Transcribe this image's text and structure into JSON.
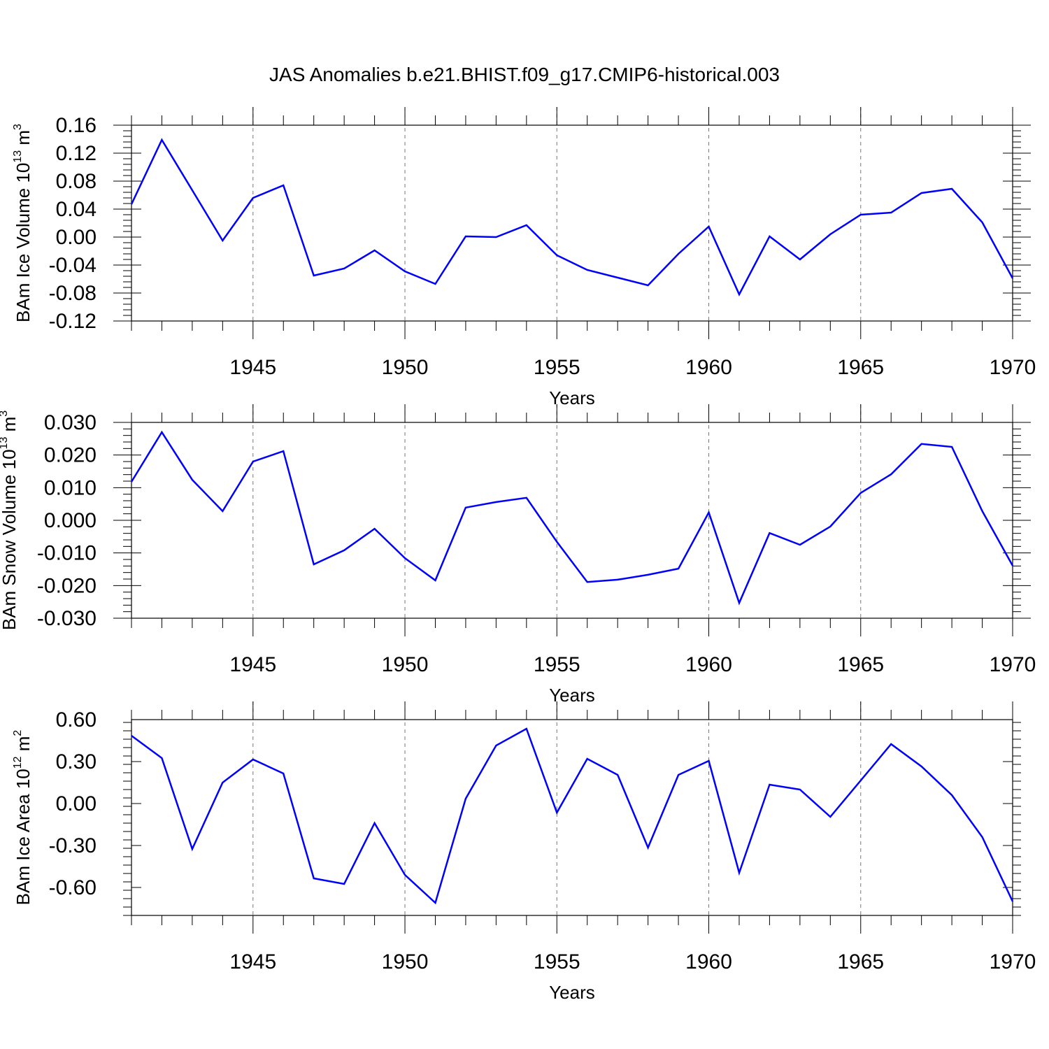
{
  "chart_data": {
    "title": "JAS Anomalies b.e21.BHIST.f09_g17.CMIP6-historical.003",
    "panels": [
      {
        "type": "line",
        "ylabel": {
          "base": "BAm Ice Volume 10",
          "exp1": "13",
          "unit": " m",
          "exp2": "3"
        },
        "xlabel": "Years",
        "xlim": [
          1941,
          1970
        ],
        "ylim": [
          -0.12,
          0.16
        ],
        "yticks": [
          "0.16",
          "0.12",
          "0.08",
          "0.04",
          "0.00",
          "-0.04",
          "-0.08",
          "-0.12"
        ],
        "ytick_values": [
          0.16,
          0.12,
          0.08,
          0.04,
          0.0,
          -0.04,
          -0.08,
          -0.12
        ],
        "xticks": [
          "1945",
          "1950",
          "1955",
          "1960",
          "1965",
          "1970"
        ],
        "x": [
          1941,
          1942,
          1943,
          1944,
          1945,
          1946,
          1947,
          1948,
          1949,
          1950,
          1951,
          1952,
          1953,
          1954,
          1955,
          1956,
          1957,
          1958,
          1959,
          1960,
          1961,
          1962,
          1963,
          1964,
          1965,
          1966,
          1967,
          1968,
          1969,
          1970
        ],
        "values": [
          0.047,
          0.139,
          0.067,
          -0.005,
          0.056,
          0.074,
          -0.055,
          -0.045,
          -0.019,
          -0.049,
          -0.067,
          0.001,
          0.0,
          0.017,
          -0.026,
          -0.047,
          -0.058,
          -0.069,
          -0.024,
          0.015,
          -0.082,
          0.001,
          -0.032,
          0.004,
          0.032,
          0.035,
          0.063,
          0.069,
          0.021,
          -0.059
        ],
        "color": "#0000ff"
      },
      {
        "type": "line",
        "ylabel": {
          "base": "BAm Snow Volume 10",
          "exp1": "13",
          "unit": " m",
          "exp2": "3"
        },
        "xlabel": "Years",
        "xlim": [
          1941,
          1970
        ],
        "ylim": [
          -0.03,
          0.03
        ],
        "yticks": [
          "0.030",
          "0.020",
          "0.010",
          "0.000",
          "-0.010",
          "-0.020",
          "-0.030"
        ],
        "ytick_values": [
          0.03,
          0.02,
          0.01,
          0.0,
          -0.01,
          -0.02,
          -0.03
        ],
        "xticks": [
          "1945",
          "1950",
          "1955",
          "1960",
          "1965",
          "1970"
        ],
        "x": [
          1941,
          1942,
          1943,
          1944,
          1945,
          1946,
          1947,
          1948,
          1949,
          1950,
          1951,
          1952,
          1953,
          1954,
          1955,
          1956,
          1957,
          1958,
          1959,
          1960,
          1961,
          1962,
          1963,
          1964,
          1965,
          1966,
          1967,
          1968,
          1969,
          1970
        ],
        "values": [
          0.0118,
          0.027,
          0.0124,
          0.0028,
          0.018,
          0.0212,
          -0.0135,
          -0.0092,
          -0.0026,
          -0.0116,
          -0.0184,
          0.0039,
          0.0056,
          0.0069,
          -0.0066,
          -0.0189,
          -0.0182,
          -0.0167,
          -0.0148,
          0.0024,
          -0.0253,
          -0.0039,
          -0.0075,
          -0.0019,
          0.0084,
          0.0141,
          0.0234,
          0.0225,
          0.0028,
          -0.0139
        ],
        "color": "#0000ff"
      },
      {
        "type": "line",
        "ylabel": {
          "base": "BAm Ice Area 10",
          "exp1": "12",
          "unit": " m",
          "exp2": "2"
        },
        "xlabel": "Years",
        "xlim": [
          1941,
          1970
        ],
        "ylim": [
          -0.8,
          0.6
        ],
        "yticks": [
          "0.60",
          "0.30",
          "0.00",
          "-0.30",
          "-0.60"
        ],
        "ytick_values": [
          0.6,
          0.3,
          0.0,
          -0.3,
          -0.6
        ],
        "xticks": [
          "1945",
          "1950",
          "1955",
          "1960",
          "1965",
          "1970"
        ],
        "x": [
          1941,
          1942,
          1943,
          1944,
          1945,
          1946,
          1947,
          1948,
          1949,
          1950,
          1951,
          1952,
          1953,
          1954,
          1955,
          1956,
          1957,
          1958,
          1959,
          1960,
          1961,
          1962,
          1963,
          1964,
          1965,
          1966,
          1967,
          1968,
          1969,
          1970
        ],
        "values": [
          0.485,
          0.325,
          -0.325,
          0.15,
          0.315,
          0.215,
          -0.535,
          -0.575,
          -0.14,
          -0.51,
          -0.71,
          0.035,
          0.415,
          0.535,
          -0.065,
          0.32,
          0.205,
          -0.315,
          0.205,
          0.305,
          -0.495,
          0.135,
          0.1,
          -0.095,
          0.165,
          0.425,
          0.265,
          0.06,
          -0.24,
          -0.7
        ],
        "color": "#0000ff"
      }
    ]
  }
}
